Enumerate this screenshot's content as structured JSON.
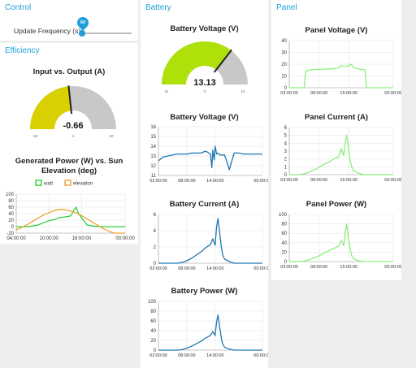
{
  "groups": {
    "control": "Control",
    "efficiency": "Efficiency",
    "battery": "Battery",
    "panel": "Panel"
  },
  "control": {
    "update_label": "Update Frequency (s)",
    "slider_value": "60",
    "slider_fraction": 0.02
  },
  "gauges": {
    "io": {
      "title": "Input vs. Output (A)",
      "value": -0.66,
      "display": "-0.66",
      "min": -10,
      "max": 10,
      "min_label": "-10",
      "max_label": "10",
      "unit": "A",
      "color": "#d8d000"
    },
    "bv": {
      "title": "Battery Voltage (V)",
      "value": 13.13,
      "display": "13.13",
      "min": 11,
      "max": 14,
      "min_label": "11",
      "max_label": "14",
      "unit": "V",
      "color": "#aee10a"
    }
  },
  "colors": {
    "accent": "#1f9fd9",
    "battery_line": "#1f77b4",
    "panel_line": "#8af07a",
    "elevation_line": "#f0a030",
    "watt_line": "#2ed13a"
  },
  "chart_data": [
    {
      "id": "gen",
      "type": "line",
      "title": "Generated Power (W) vs. Sun Elevation (deg)",
      "y_ticks": [
        "100",
        "80",
        "60",
        "40",
        "20",
        "0",
        "-20"
      ],
      "ylim": [
        -20,
        100
      ],
      "x_ticks": [
        "04:00:00",
        "10:00:00",
        "16:00:00",
        "00:00:00"
      ],
      "legend": [
        "watt",
        "elevation"
      ],
      "series": [
        {
          "name": "watt",
          "x": [
            4,
            5,
            6,
            7,
            8,
            9,
            10,
            11,
            12,
            13,
            14,
            14.5,
            15,
            15.5,
            16,
            17,
            18,
            20,
            22,
            24
          ],
          "y": [
            0,
            0,
            0,
            2,
            5,
            12,
            18,
            22,
            28,
            30,
            33,
            48,
            60,
            38,
            28,
            5,
            2,
            0,
            0,
            0
          ]
        },
        {
          "name": "elevation",
          "x": [
            4,
            5,
            6,
            7,
            8,
            9,
            10,
            11,
            12,
            13,
            14,
            15,
            16,
            17,
            18,
            19,
            20,
            21,
            22,
            24
          ],
          "y": [
            -10,
            -2,
            6,
            16,
            26,
            36,
            43,
            50,
            53,
            52,
            48,
            42,
            34,
            24,
            14,
            4,
            -6,
            -14,
            -20,
            -20
          ]
        }
      ]
    },
    {
      "id": "bvchart",
      "type": "line",
      "title": "Battery Voltage (V)",
      "y_ticks": [
        "16",
        "15",
        "14",
        "13",
        "12",
        "11"
      ],
      "ylim": [
        11,
        16
      ],
      "x_ticks": [
        "02:00:00",
        "08:00:00",
        "14:00:00",
        "00:00:00"
      ],
      "series": [
        {
          "name": "",
          "x": [
            2,
            3,
            4,
            5,
            6,
            7,
            8,
            9,
            10,
            11,
            12,
            13,
            13.3,
            13.5,
            13.8,
            14,
            14.3,
            14.6,
            15,
            16,
            17,
            18,
            19,
            20,
            21,
            24
          ],
          "y": [
            12.5,
            12.9,
            13.0,
            13.1,
            13.2,
            13.2,
            13.2,
            13.3,
            13.3,
            13.3,
            13.5,
            13.2,
            11.8,
            13.6,
            12.6,
            14.0,
            13.2,
            13.3,
            13.1,
            13.1,
            11.6,
            13.3,
            13.3,
            13.2,
            13.2,
            13.2
          ]
        }
      ]
    },
    {
      "id": "bcchart",
      "type": "line",
      "title": "Battery Current (A)",
      "y_ticks": [
        "6",
        "4",
        "2",
        "0"
      ],
      "ylim": [
        0,
        6
      ],
      "x_ticks": [
        "02:00:00",
        "08:00:00",
        "14:00:00",
        "00:00:00"
      ],
      "series": [
        {
          "name": "",
          "x": [
            2,
            4,
            6,
            7,
            8,
            9,
            10,
            11,
            12,
            13,
            13.5,
            14,
            14.3,
            14.6,
            15,
            15.3,
            15.6,
            16,
            17,
            18,
            20,
            24
          ],
          "y": [
            0,
            0,
            0,
            0.1,
            0.3,
            0.6,
            1.0,
            1.4,
            1.9,
            2.3,
            3.0,
            2.2,
            4.5,
            5.5,
            3.5,
            2.0,
            1.0,
            0.5,
            0.2,
            0,
            0,
            0
          ]
        }
      ]
    },
    {
      "id": "bpchart",
      "type": "line",
      "title": "Battery Power (W)",
      "y_ticks": [
        "100",
        "80",
        "60",
        "40",
        "20",
        "0"
      ],
      "ylim": [
        0,
        100
      ],
      "x_ticks": [
        "02:00:00",
        "08:00:00",
        "14:00:00",
        "00:00:00"
      ],
      "series": [
        {
          "name": "",
          "x": [
            2,
            4,
            6,
            7,
            8,
            9,
            10,
            11,
            12,
            13,
            13.5,
            14,
            14.3,
            14.6,
            15,
            15.3,
            15.6,
            16,
            17,
            18,
            20,
            24
          ],
          "y": [
            0,
            0,
            0,
            1,
            4,
            8,
            13,
            18,
            25,
            30,
            38,
            30,
            58,
            72,
            44,
            25,
            12,
            6,
            2,
            0,
            0,
            0
          ]
        }
      ]
    },
    {
      "id": "pvchart",
      "type": "line",
      "title": "Panel Voltage (V)",
      "y_ticks": [
        "40",
        "30",
        "20",
        "10",
        "0"
      ],
      "ylim": [
        0,
        40
      ],
      "x_ticks": [
        "03:00:00",
        "09:00:00",
        "15:00:00",
        "00:00:00"
      ],
      "series": [
        {
          "name": "",
          "x": [
            3,
            5,
            6,
            6.3,
            7,
            9,
            11,
            12,
            13,
            13.5,
            14,
            15,
            15.5,
            16,
            17,
            18.3,
            18.6,
            20,
            24
          ],
          "y": [
            0,
            0,
            0,
            14,
            15,
            15.5,
            16,
            16,
            17,
            19,
            18,
            18.5,
            20,
            17,
            16,
            15,
            0,
            0,
            0
          ]
        }
      ]
    },
    {
      "id": "pcchart",
      "type": "line",
      "title": "Panel Current (A)",
      "y_ticks": [
        "6",
        "5",
        "4",
        "3",
        "2",
        "1",
        "0"
      ],
      "ylim": [
        0,
        6
      ],
      "x_ticks": [
        "03:00:00",
        "09:00:00",
        "15:00:00",
        "00:00:00"
      ],
      "series": [
        {
          "name": "",
          "x": [
            3,
            5,
            6,
            7,
            8,
            9,
            10,
            11,
            12,
            13,
            13.5,
            14,
            14.3,
            14.6,
            15,
            15.3,
            15.6,
            16,
            17,
            18,
            20,
            24
          ],
          "y": [
            0,
            0,
            0.1,
            0.3,
            0.6,
            0.9,
            1.3,
            1.6,
            2.0,
            2.3,
            3.3,
            2.4,
            4.1,
            5.0,
            3.2,
            1.8,
            1.0,
            0.5,
            0.2,
            0,
            0,
            0
          ]
        }
      ]
    },
    {
      "id": "ppchart",
      "type": "line",
      "title": "Panel Power (W)",
      "y_ticks": [
        "100",
        "80",
        "60",
        "40",
        "20",
        "0"
      ],
      "ylim": [
        0,
        100
      ],
      "x_ticks": [
        "03:00:00",
        "09:00:00",
        "15:00:00",
        "00:00:00"
      ],
      "series": [
        {
          "name": "",
          "x": [
            3,
            5,
            6,
            7,
            8,
            9,
            10,
            11,
            12,
            13,
            13.5,
            14,
            14.3,
            14.6,
            15,
            15.3,
            15.6,
            16,
            17,
            18,
            20,
            24
          ],
          "y": [
            0,
            0,
            1,
            4,
            8,
            12,
            18,
            23,
            28,
            33,
            45,
            34,
            62,
            80,
            47,
            27,
            13,
            6,
            2,
            0,
            0,
            0
          ]
        }
      ]
    }
  ]
}
